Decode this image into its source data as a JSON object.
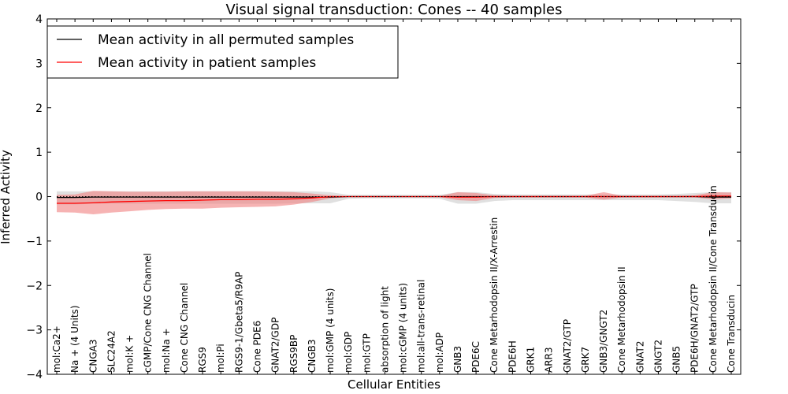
{
  "chart_data": {
    "type": "line",
    "title": "Visual signal transduction: Cones -- 40 samples",
    "xlabel": "Cellular Entities",
    "ylabel": "Inferred Activity",
    "ylim": [
      -4,
      4
    ],
    "yticks": [
      -4,
      -3,
      -2,
      -1,
      0,
      1,
      2,
      3,
      4
    ],
    "legend_position": "top-left",
    "categories": [
      "mol:Ca2+",
      "Na + (4 Units)",
      "CNGA3",
      "SLC24A2",
      "mol:K +",
      "cGMP/Cone CNG Channel",
      "mol:Na +",
      "Cone CNG Channel",
      "RGS9",
      "mol:Pi",
      "RGS9-1/Gbeta5/R9AP",
      "Cone PDE6",
      "GNAT2/GDP",
      "RGS9BP",
      "CNGB3",
      "mol:GMP (4 units)",
      "mol:GDP",
      "mol:GTP",
      "absorption of light",
      "mol:cGMP (4 units)",
      "mol:all-trans-retinal",
      "mol:ADP",
      "GNB3",
      "PDE6C",
      "Cone Metarhodopsin II/X-Arrestin",
      "PDE6H",
      "GRK1",
      "ARR3",
      "GNAT2/GTP",
      "GRK7",
      "GNB3/GNGT2",
      "Cone Metarhodopsin II",
      "GNAT2",
      "GNGT2",
      "GNB5",
      "PDE6H/GNAT2/GTP",
      "Cone Metarhodopsin II/Cone Transducin",
      "Cone Transducin"
    ],
    "series": [
      {
        "name": "Mean activity in all permuted samples",
        "color": "#000000",
        "band_color": "#bbbbbb",
        "values": [
          -0.02,
          -0.02,
          -0.01,
          -0.01,
          -0.01,
          -0.01,
          -0.01,
          -0.01,
          -0.01,
          -0.01,
          -0.01,
          -0.01,
          -0.01,
          -0.01,
          -0.01,
          -0.01,
          0,
          0,
          0,
          0,
          0,
          0,
          0,
          0,
          0,
          0,
          0,
          0,
          0,
          0,
          0,
          0,
          0,
          0,
          0,
          0,
          -0.01,
          -0.01
        ],
        "lower": [
          -0.18,
          -0.18,
          -0.16,
          -0.16,
          -0.16,
          -0.16,
          -0.16,
          -0.16,
          -0.16,
          -0.16,
          -0.16,
          -0.16,
          -0.16,
          -0.15,
          -0.15,
          -0.15,
          -0.05,
          -0.04,
          -0.04,
          -0.04,
          -0.04,
          -0.05,
          -0.16,
          -0.16,
          -0.1,
          -0.08,
          -0.08,
          -0.08,
          -0.08,
          -0.08,
          -0.08,
          -0.08,
          -0.08,
          -0.08,
          -0.1,
          -0.12,
          -0.15,
          -0.15
        ],
        "upper": [
          0.12,
          0.12,
          0.12,
          0.12,
          0.12,
          0.12,
          0.12,
          0.12,
          0.12,
          0.12,
          0.12,
          0.12,
          0.12,
          0.12,
          0.12,
          0.1,
          0.04,
          0.04,
          0.04,
          0.04,
          0.04,
          0.04,
          0.1,
          0.1,
          0.06,
          0.05,
          0.05,
          0.05,
          0.05,
          0.05,
          0.05,
          0.05,
          0.05,
          0.05,
          0.06,
          0.08,
          0.1,
          0.1
        ]
      },
      {
        "name": "Mean activity in patient samples",
        "color": "#ff0000",
        "band_color": "#f08080",
        "values": [
          -0.15,
          -0.15,
          -0.14,
          -0.12,
          -0.11,
          -0.1,
          -0.09,
          -0.09,
          -0.08,
          -0.07,
          -0.07,
          -0.06,
          -0.06,
          -0.05,
          -0.03,
          0,
          0,
          0,
          0,
          0,
          0,
          0,
          -0.01,
          -0.01,
          0,
          0,
          0,
          0,
          0,
          0,
          0,
          0,
          0,
          0,
          0,
          0,
          0.01,
          0.01
        ],
        "lower": [
          -0.35,
          -0.36,
          -0.4,
          -0.36,
          -0.33,
          -0.3,
          -0.28,
          -0.27,
          -0.27,
          -0.25,
          -0.24,
          -0.23,
          -0.22,
          -0.18,
          -0.12,
          -0.04,
          -0.01,
          -0.01,
          -0.01,
          -0.01,
          -0.01,
          -0.01,
          -0.08,
          -0.1,
          -0.03,
          -0.02,
          -0.02,
          -0.02,
          -0.02,
          -0.02,
          -0.07,
          -0.02,
          -0.02,
          -0.02,
          -0.02,
          -0.02,
          -0.06,
          -0.04
        ],
        "upper": [
          0.04,
          0.05,
          0.13,
          0.12,
          0.11,
          0.11,
          0.11,
          0.12,
          0.12,
          0.12,
          0.12,
          0.12,
          0.11,
          0.1,
          0.07,
          0.03,
          0.01,
          0.01,
          0.01,
          0.01,
          0.01,
          0.01,
          0.1,
          0.08,
          0.03,
          0.02,
          0.02,
          0.02,
          0.02,
          0.02,
          0.1,
          0.02,
          0.02,
          0.02,
          0.02,
          0.03,
          0.1,
          0.09
        ]
      }
    ]
  }
}
